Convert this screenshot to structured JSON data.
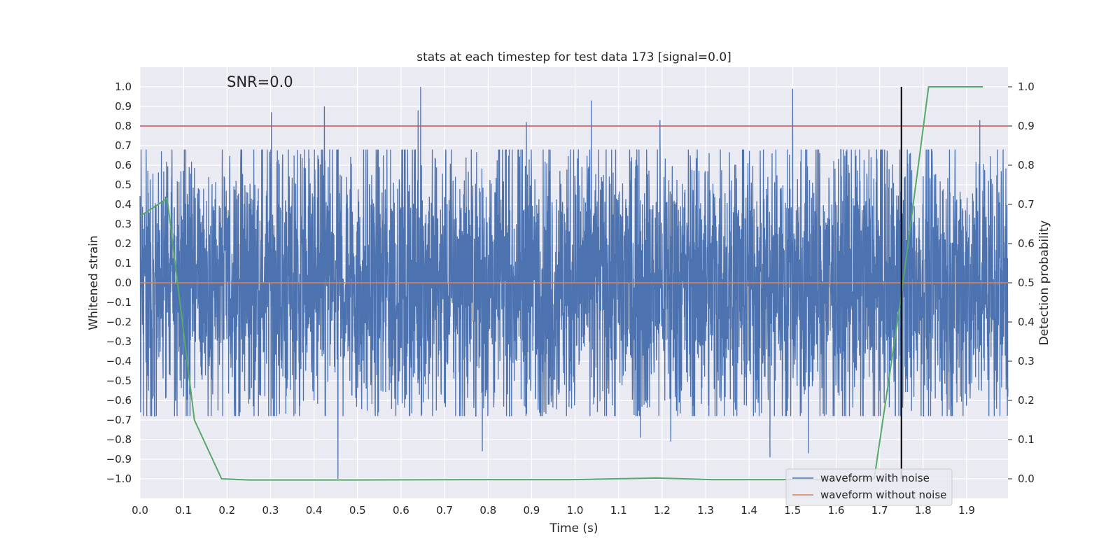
{
  "chart_data": {
    "type": "line",
    "title": "stats at each timestep for test data 173 [signal=0.0]",
    "xlabel": "Time (s)",
    "ylabel": "Whitened strain",
    "y2label": "Detection probability",
    "annotation": "SNR=0.0",
    "xlim": [
      0.0,
      1.995
    ],
    "ylim": [
      -1.1,
      1.1
    ],
    "y2lim": [
      -0.05,
      1.05
    ],
    "x_ticks": [
      "0.0",
      "0.1",
      "0.2",
      "0.3",
      "0.4",
      "0.5",
      "0.6",
      "0.7",
      "0.8",
      "0.9",
      "1.0",
      "1.1",
      "1.2",
      "1.3",
      "1.4",
      "1.5",
      "1.6",
      "1.7",
      "1.8",
      "1.9"
    ],
    "y_ticks": [
      "1.0",
      "0.9",
      "0.8",
      "0.7",
      "0.6",
      "0.5",
      "0.4",
      "0.3",
      "0.2",
      "0.1",
      "0.0",
      "−0.1",
      "−0.2",
      "−0.3",
      "−0.4",
      "−0.5",
      "−0.6",
      "−0.7",
      "−0.8",
      "−0.9",
      "−1.0"
    ],
    "y2_ticks": [
      "1.0",
      "0.9",
      "0.8",
      "0.7",
      "0.6",
      "0.5",
      "0.4",
      "0.3",
      "0.2",
      "0.1",
      "0.0"
    ],
    "grid": true,
    "legend_position": "lower-right",
    "series": [
      {
        "name": "waveform with noise",
        "color": "#4c72b0",
        "axis": "left",
        "description": "whitened noise strain, dense, amplitude mostly within ±0.6, min -1.0 near 0.455 s, max 1.0 near 0.645 s",
        "peaks": [
          {
            "x": 0.302,
            "y": 0.87
          },
          {
            "x": 0.424,
            "y": 0.9
          },
          {
            "x": 0.645,
            "y": 1.0
          },
          {
            "x": 0.639,
            "y": 0.88
          },
          {
            "x": 1.037,
            "y": 0.93
          },
          {
            "x": 1.5,
            "y": 0.99
          },
          {
            "x": 1.93,
            "y": 0.83
          },
          {
            "x": 0.888,
            "y": 0.82
          },
          {
            "x": 1.195,
            "y": 0.83
          },
          {
            "x": 0.455,
            "y": -1.0
          },
          {
            "x": 0.787,
            "y": -0.86
          },
          {
            "x": 1.448,
            "y": -0.89
          },
          {
            "x": 1.536,
            "y": -0.87
          },
          {
            "x": 1.22,
            "y": -0.81
          },
          {
            "x": 1.15,
            "y": -0.79
          }
        ]
      },
      {
        "name": "waveform without noise",
        "color": "#dd8452",
        "axis": "left",
        "x": [
          0.0,
          1.995
        ],
        "y": [
          0.0,
          0.0
        ]
      },
      {
        "color": "#55a868",
        "axis": "right",
        "x": [
          0.0,
          0.0625,
          0.125,
          0.1875,
          0.25,
          0.5,
          0.75,
          1.0,
          1.1875,
          1.3125,
          1.625,
          1.6875,
          1.75,
          1.8125,
          1.875,
          1.9375
        ],
        "y": [
          0.67,
          0.715,
          0.15,
          0.0,
          -0.003,
          -0.003,
          -0.002,
          -0.002,
          0.002,
          -0.002,
          -0.002,
          0.0,
          0.47,
          1.0,
          1.0,
          1.0
        ]
      }
    ],
    "hlines": [
      {
        "y": 0.8,
        "color": "#c44e52",
        "axis": "left"
      }
    ],
    "vlines": [
      {
        "x": 1.75,
        "color": "#000000",
        "ymin": -1.0,
        "ymax": 1.0
      }
    ]
  }
}
